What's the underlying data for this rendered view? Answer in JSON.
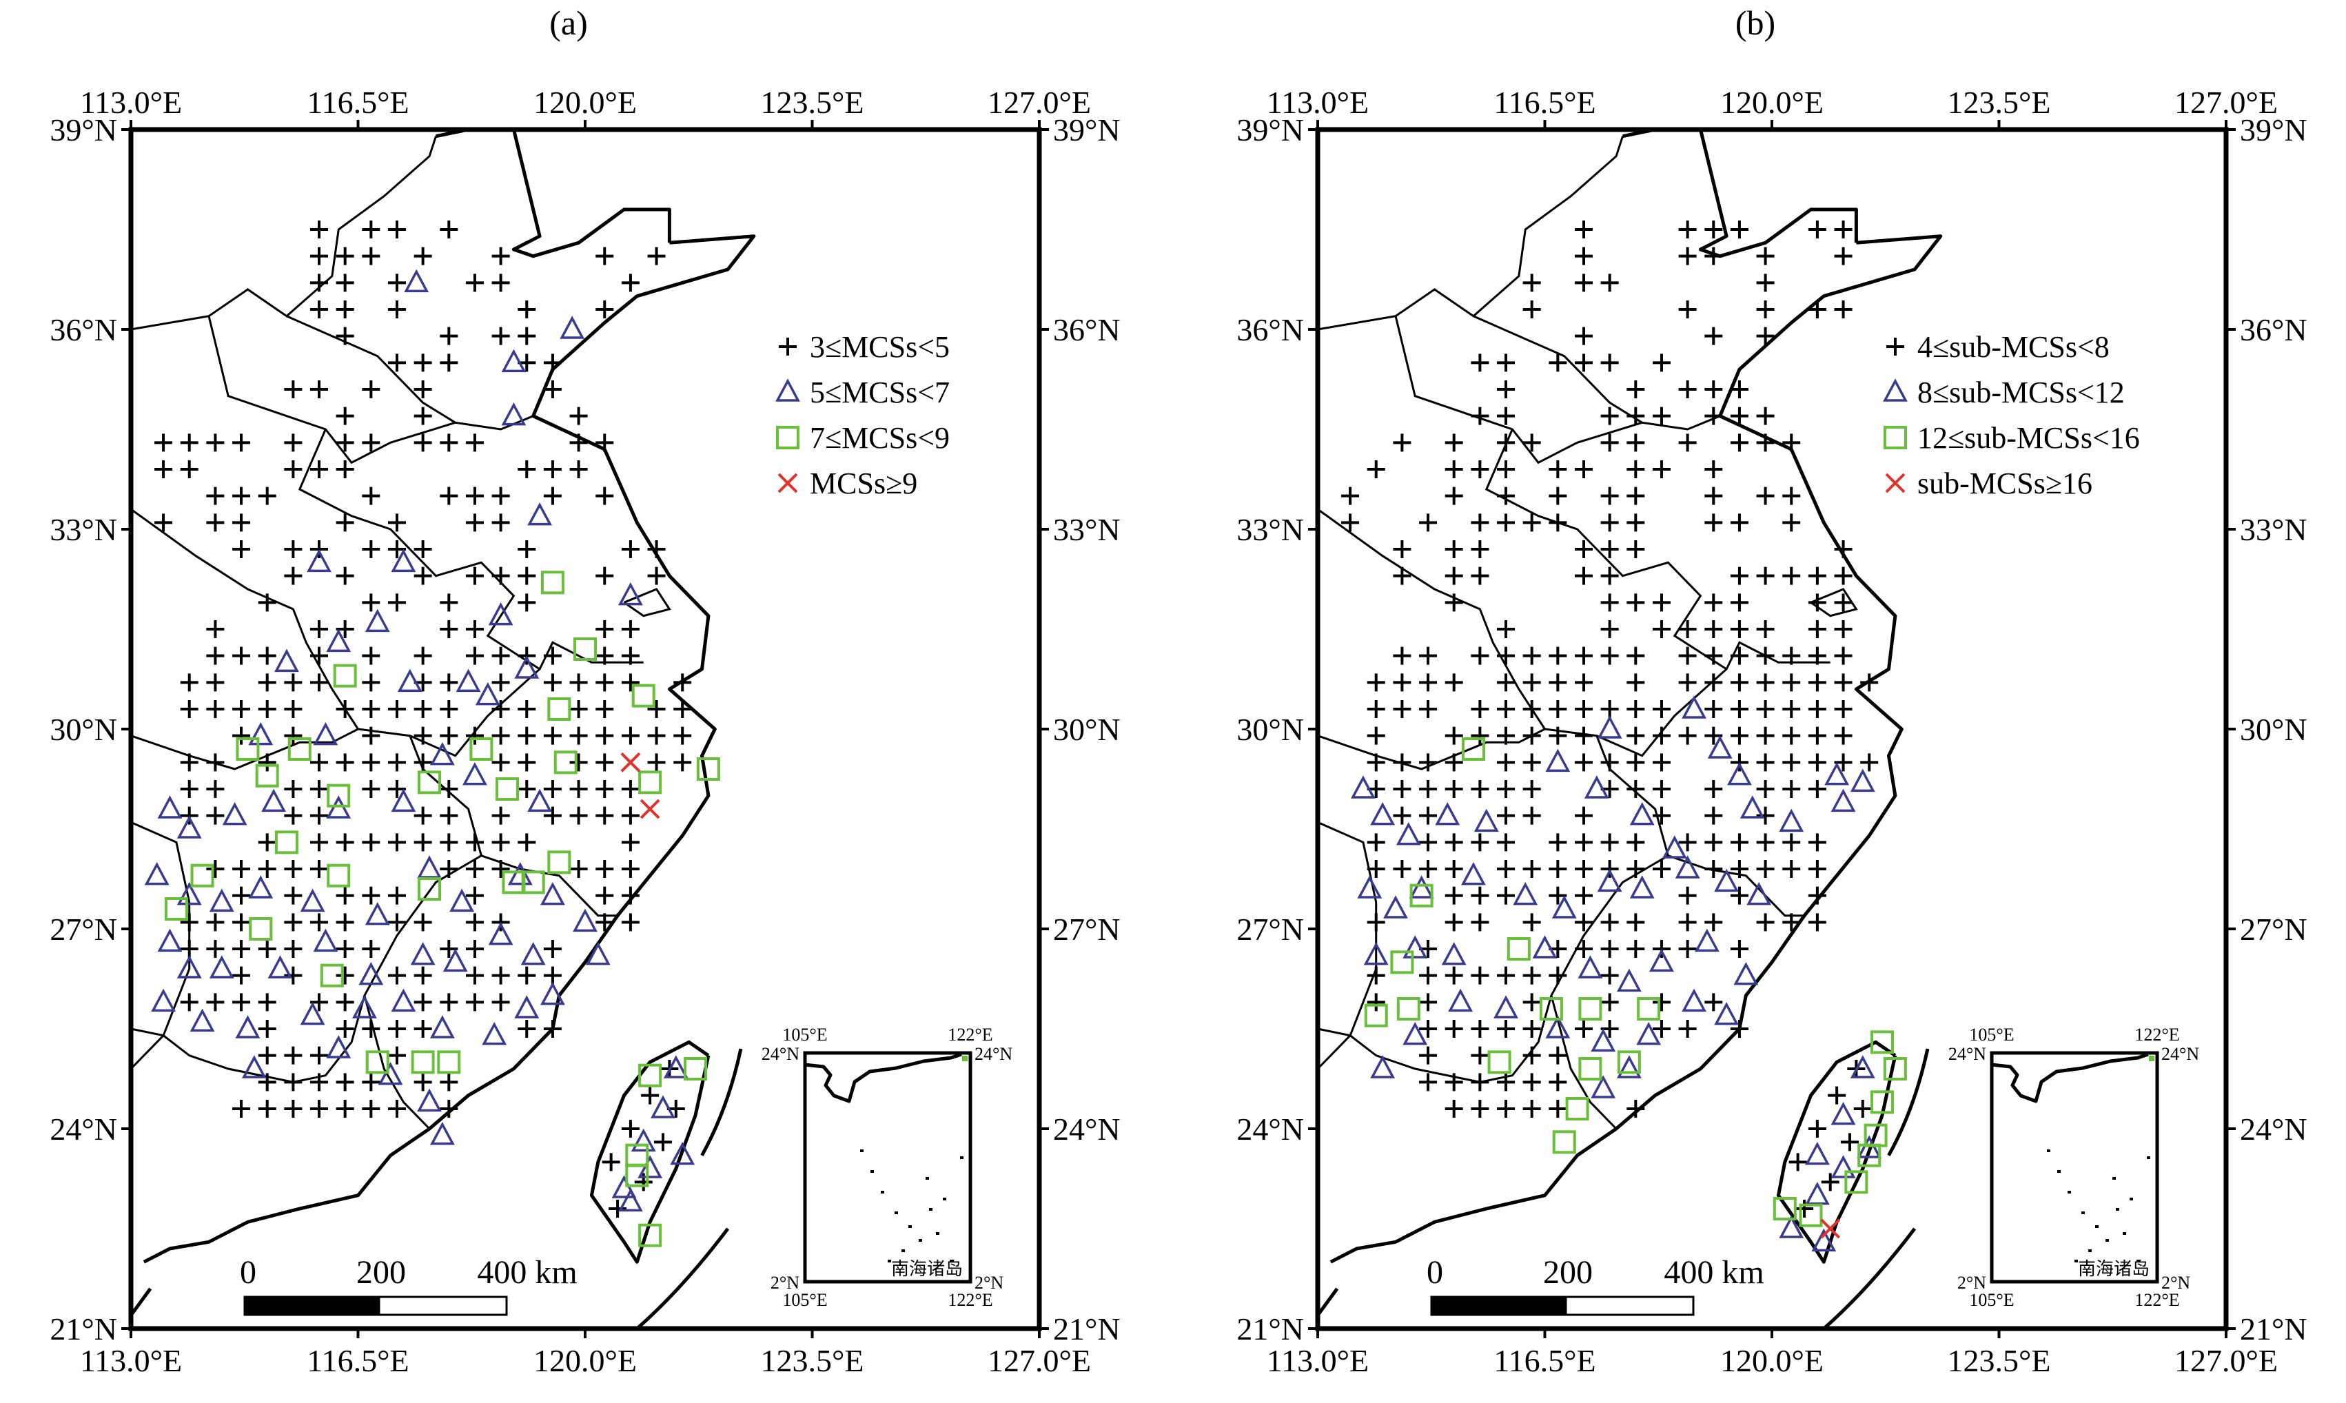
{
  "panels": [
    {
      "title": "(a)",
      "legend": [
        {
          "symbol": "plus",
          "text": "3≤MCSs<5"
        },
        {
          "symbol": "triangle",
          "text": "5≤MCSs<7"
        },
        {
          "symbol": "square",
          "text": "7≤MCSs<9"
        },
        {
          "symbol": "cross",
          "text": "MCSs≥9"
        }
      ]
    },
    {
      "title": "(b)",
      "legend": [
        {
          "symbol": "plus",
          "text": "4≤sub-MCSs<8"
        },
        {
          "symbol": "triangle",
          "text": "8≤sub-MCSs<12"
        },
        {
          "symbol": "square",
          "text": "12≤sub-MCSs<16"
        },
        {
          "symbol": "cross",
          "text": "sub-MCSs≥16"
        }
      ]
    }
  ],
  "axes": {
    "lon_ticks": [
      "113.0°E",
      "116.5°E",
      "120.0°E",
      "123.5°E",
      "127.0°E"
    ],
    "lat_ticks": [
      "39°N",
      "36°N",
      "33°N",
      "30°N",
      "27°N",
      "24°N",
      "21°N"
    ],
    "lon_range": [
      113.0,
      127.0
    ],
    "lat_range": [
      21.0,
      39.0
    ]
  },
  "scale_bar": {
    "labels": [
      "0",
      "200",
      "400 km"
    ]
  },
  "inset": {
    "name": "南海诸岛",
    "top_left_lon": "105°E",
    "top_right_lon": "122°E",
    "bottom_left_lon": "105°E",
    "bottom_right_lon": "122°E",
    "top_left_lat": "24°N",
    "top_right_lat": "24°N",
    "bottom_left_lat": "2°N",
    "bottom_right_lat": "2°N"
  },
  "colors": {
    "plus": "#000000",
    "triangle": "#3b3a8f",
    "square": "#6abf3a",
    "cross": "#e0322a"
  },
  "chart_data": [
    {
      "type": "scatter",
      "title": "(a)",
      "series": [
        {
          "name": "5≤MCSs<7",
          "symbol": "triangle",
          "points": [
            [
              117.4,
              36.7
            ],
            [
              118.9,
              35.5
            ],
            [
              119.8,
              36.0
            ],
            [
              118.9,
              34.7
            ],
            [
              119.3,
              33.2
            ],
            [
              120.7,
              32.0
            ],
            [
              117.2,
              32.5
            ],
            [
              115.9,
              32.5
            ],
            [
              116.8,
              31.6
            ],
            [
              118.7,
              31.7
            ],
            [
              115.4,
              31.0
            ],
            [
              116.2,
              31.3
            ],
            [
              119.1,
              30.9
            ],
            [
              117.3,
              30.7
            ],
            [
              118.2,
              30.7
            ],
            [
              115.0,
              29.9
            ],
            [
              116.0,
              29.9
            ],
            [
              118.5,
              30.5
            ],
            [
              117.8,
              29.6
            ],
            [
              114.6,
              28.7
            ],
            [
              115.2,
              28.9
            ],
            [
              116.2,
              28.8
            ],
            [
              117.2,
              28.9
            ],
            [
              118.3,
              29.3
            ],
            [
              119.3,
              28.9
            ],
            [
              113.6,
              28.8
            ],
            [
              113.9,
              28.5
            ],
            [
              113.4,
              27.8
            ],
            [
              113.9,
              27.5
            ],
            [
              114.4,
              27.4
            ],
            [
              115.0,
              27.6
            ],
            [
              115.8,
              27.4
            ],
            [
              116.8,
              27.2
            ],
            [
              117.6,
              27.9
            ],
            [
              118.1,
              27.4
            ],
            [
              119.0,
              27.8
            ],
            [
              119.5,
              27.5
            ],
            [
              113.6,
              26.8
            ],
            [
              113.9,
              26.4
            ],
            [
              114.4,
              26.4
            ],
            [
              115.3,
              26.4
            ],
            [
              116.0,
              26.8
            ],
            [
              116.7,
              26.3
            ],
            [
              117.5,
              26.6
            ],
            [
              118.0,
              26.5
            ],
            [
              118.7,
              26.9
            ],
            [
              119.2,
              26.6
            ],
            [
              120.2,
              26.6
            ],
            [
              113.5,
              25.9
            ],
            [
              114.1,
              25.6
            ],
            [
              114.8,
              25.5
            ],
            [
              115.8,
              25.7
            ],
            [
              116.6,
              25.8
            ],
            [
              117.2,
              25.9
            ],
            [
              117.8,
              25.5
            ],
            [
              118.6,
              25.4
            ],
            [
              119.1,
              25.8
            ],
            [
              116.2,
              25.2
            ],
            [
              117.0,
              24.8
            ],
            [
              117.6,
              24.4
            ],
            [
              114.9,
              24.9
            ],
            [
              119.5,
              26.0
            ],
            [
              120.0,
              27.1
            ],
            [
              121.4,
              24.9
            ],
            [
              121.2,
              24.3
            ],
            [
              120.9,
              23.8
            ],
            [
              120.6,
              23.1
            ],
            [
              121.5,
              23.6
            ],
            [
              120.7,
              22.9
            ],
            [
              121.0,
              23.4
            ],
            [
              117.8,
              23.9
            ]
          ]
        },
        {
          "name": "7≤MCSs<9",
          "symbol": "square",
          "points": [
            [
              119.5,
              32.2
            ],
            [
              120.0,
              31.2
            ],
            [
              116.3,
              30.8
            ],
            [
              119.6,
              30.3
            ],
            [
              120.9,
              30.5
            ],
            [
              114.8,
              29.7
            ],
            [
              115.6,
              29.7
            ],
            [
              118.4,
              29.7
            ],
            [
              115.1,
              29.3
            ],
            [
              119.7,
              29.5
            ],
            [
              121.0,
              29.2
            ],
            [
              121.9,
              29.4
            ],
            [
              116.2,
              29.0
            ],
            [
              117.6,
              29.2
            ],
            [
              118.8,
              29.1
            ],
            [
              115.4,
              28.3
            ],
            [
              119.2,
              27.7
            ],
            [
              119.6,
              28.0
            ],
            [
              114.1,
              27.8
            ],
            [
              113.7,
              27.3
            ],
            [
              117.6,
              27.6
            ],
            [
              116.2,
              27.8
            ],
            [
              115.0,
              27.0
            ],
            [
              116.1,
              26.3
            ],
            [
              116.8,
              25.0
            ],
            [
              117.5,
              25.0
            ],
            [
              117.9,
              25.0
            ],
            [
              121.0,
              24.8
            ],
            [
              121.7,
              24.9
            ],
            [
              120.8,
              23.6
            ],
            [
              120.8,
              23.3
            ],
            [
              121.0,
              22.4
            ],
            [
              118.9,
              27.7
            ]
          ]
        },
        {
          "name": "MCSs≥9",
          "symbol": "cross",
          "points": [
            [
              120.7,
              29.5
            ],
            [
              121.0,
              28.8
            ]
          ]
        }
      ]
    },
    {
      "type": "scatter",
      "title": "(b)",
      "series": [
        {
          "name": "8≤sub-MCSs<12",
          "symbol": "triangle",
          "points": [
            [
              117.5,
              30.0
            ],
            [
              118.8,
              30.3
            ],
            [
              119.2,
              29.7
            ],
            [
              116.7,
              29.5
            ],
            [
              119.5,
              29.3
            ],
            [
              121.0,
              29.3
            ],
            [
              121.4,
              29.2
            ],
            [
              113.7,
              29.1
            ],
            [
              114.0,
              28.7
            ],
            [
              114.4,
              28.4
            ],
            [
              115.0,
              28.7
            ],
            [
              115.6,
              28.6
            ],
            [
              117.3,
              29.1
            ],
            [
              118.0,
              28.7
            ],
            [
              118.5,
              28.2
            ],
            [
              119.7,
              28.8
            ],
            [
              120.3,
              28.6
            ],
            [
              121.1,
              28.9
            ],
            [
              113.8,
              27.6
            ],
            [
              114.2,
              27.3
            ],
            [
              114.6,
              27.6
            ],
            [
              115.4,
              27.8
            ],
            [
              116.2,
              27.5
            ],
            [
              116.8,
              27.3
            ],
            [
              117.5,
              27.7
            ],
            [
              118.0,
              27.6
            ],
            [
              118.7,
              27.9
            ],
            [
              119.3,
              27.7
            ],
            [
              119.8,
              27.5
            ],
            [
              113.9,
              26.6
            ],
            [
              114.5,
              26.7
            ],
            [
              115.1,
              26.6
            ],
            [
              116.5,
              26.7
            ],
            [
              117.2,
              26.4
            ],
            [
              117.8,
              26.2
            ],
            [
              118.3,
              26.5
            ],
            [
              119.0,
              26.8
            ],
            [
              119.6,
              26.3
            ],
            [
              114.5,
              25.4
            ],
            [
              115.2,
              25.9
            ],
            [
              115.9,
              25.8
            ],
            [
              116.7,
              25.5
            ],
            [
              117.4,
              25.3
            ],
            [
              118.1,
              25.4
            ],
            [
              118.8,
              25.9
            ],
            [
              119.3,
              25.7
            ],
            [
              117.4,
              24.6
            ],
            [
              117.8,
              24.9
            ],
            [
              114.0,
              24.9
            ],
            [
              121.4,
              24.9
            ],
            [
              121.1,
              24.2
            ],
            [
              120.7,
              23.6
            ],
            [
              121.5,
              23.7
            ],
            [
              120.7,
              23.0
            ],
            [
              121.1,
              23.4
            ],
            [
              120.3,
              22.5
            ],
            [
              120.8,
              22.3
            ]
          ]
        },
        {
          "name": "12≤sub-MCSs<16",
          "symbol": "square",
          "points": [
            [
              115.4,
              29.7
            ],
            [
              114.6,
              27.5
            ],
            [
              116.1,
              26.7
            ],
            [
              114.3,
              26.5
            ],
            [
              113.9,
              25.7
            ],
            [
              114.4,
              25.8
            ],
            [
              115.8,
              25.0
            ],
            [
              116.6,
              25.8
            ],
            [
              117.2,
              25.8
            ],
            [
              118.1,
              25.8
            ],
            [
              117.2,
              24.9
            ],
            [
              117.8,
              25.0
            ],
            [
              117.0,
              24.3
            ],
            [
              116.8,
              23.8
            ],
            [
              121.7,
              25.3
            ],
            [
              121.9,
              24.9
            ],
            [
              121.7,
              24.4
            ],
            [
              121.6,
              23.9
            ],
            [
              121.5,
              23.6
            ],
            [
              121.3,
              23.2
            ],
            [
              120.2,
              22.8
            ],
            [
              120.6,
              22.7
            ]
          ]
        },
        {
          "name": "sub-MCSs≥16",
          "symbol": "cross",
          "points": [
            [
              120.9,
              22.5
            ]
          ]
        }
      ]
    }
  ]
}
